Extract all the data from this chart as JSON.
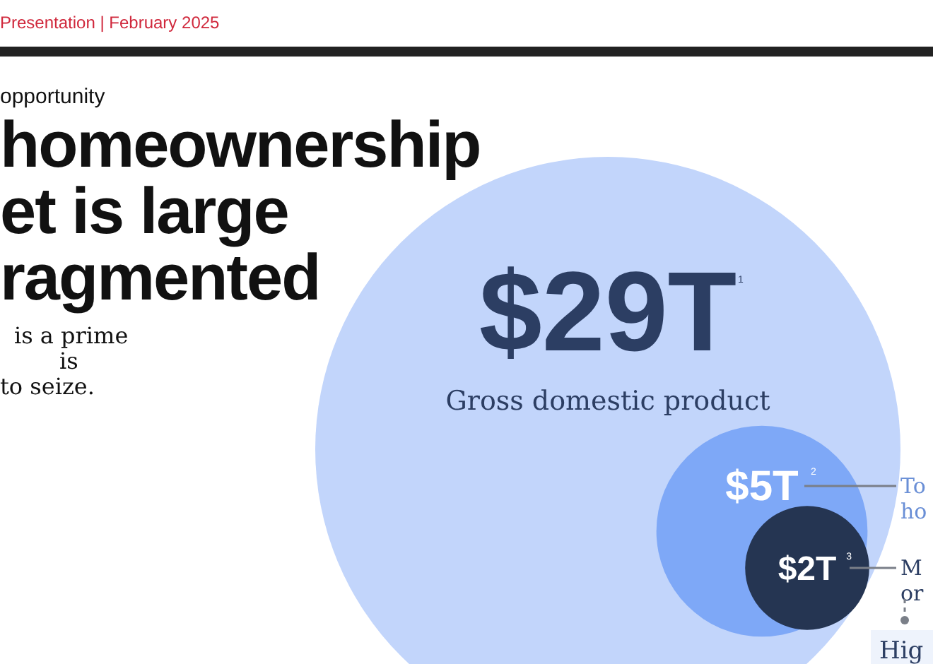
{
  "chart_data": {
    "type": "other",
    "title": "homeownership\net is large\nragmented",
    "subtitle": "opportunity",
    "categories": [
      "Gross domestic product",
      null,
      null
    ],
    "values": [
      29,
      5,
      2
    ],
    "value_labels": [
      "$29T",
      "$5T",
      "$2T"
    ],
    "colors": [
      "#c2d5fb",
      "#7ea8f7",
      "#253552"
    ],
    "annotations": [
      "Presentation | February 2025",
      "is a prime\nis\nto seize.",
      "To\nho",
      "M\nor",
      "Hig",
      "1",
      "2",
      "3"
    ]
  }
}
